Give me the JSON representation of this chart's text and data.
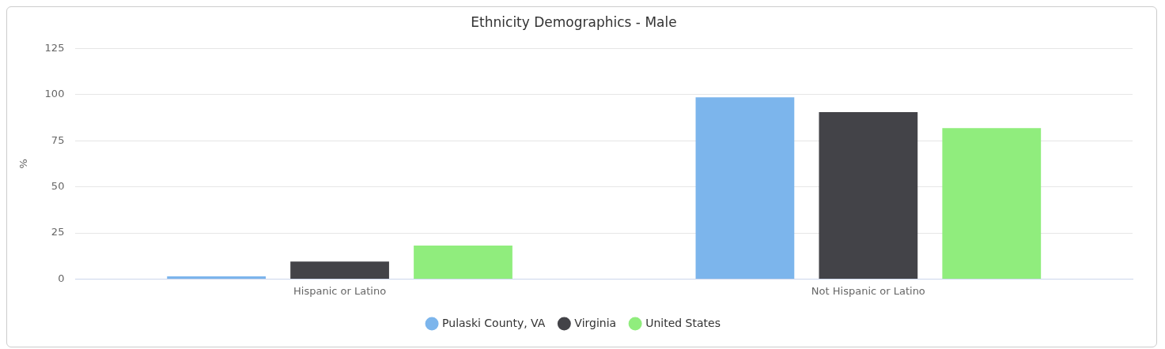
{
  "chart_data": {
    "type": "bar",
    "title": "Ethnicity Demographics - Male",
    "ylabel": "%",
    "categories": [
      "Hispanic or Latino",
      "Not Hispanic or Latino"
    ],
    "series": [
      {
        "name": "Pulaski County, VA",
        "color": "#7cb5ec",
        "values": [
          1.5,
          98.5
        ]
      },
      {
        "name": "Virginia",
        "color": "#434348",
        "values": [
          9.5,
          90.5
        ]
      },
      {
        "name": "United States",
        "color": "#90ed7d",
        "values": [
          18.2,
          81.8
        ]
      }
    ],
    "ylim": [
      0,
      125
    ],
    "yticks": [
      0,
      25,
      50,
      75,
      100,
      125
    ],
    "grid": "y",
    "legend": "bottom"
  }
}
